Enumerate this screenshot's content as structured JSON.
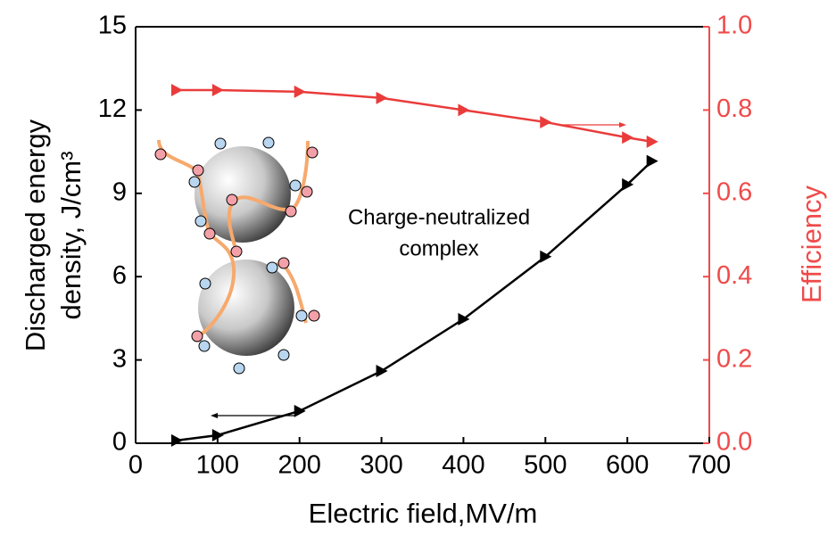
{
  "chart_data": {
    "type": "line",
    "xlabel": "Electric field,MV/m",
    "ylabel": [
      "Discharged energy",
      "density,  J/cm³"
    ],
    "y2label": "Efficiency",
    "annotation": [
      "Charge-neutralized",
      "complex"
    ],
    "x": [
      50,
      100,
      200,
      300,
      400,
      500,
      600,
      630
    ],
    "xlim": [
      0,
      700
    ],
    "xticks": [
      0,
      100,
      200,
      300,
      400,
      500,
      600,
      700
    ],
    "ylim": [
      0,
      15
    ],
    "yticks": [
      0,
      3,
      6,
      9,
      12,
      15
    ],
    "y2lim": [
      0,
      1
    ],
    "y2ticks": [
      {
        "value": 0,
        "label": "0.0"
      },
      0.2,
      0.4,
      0.6,
      0.8,
      {
        "value": 1,
        "label": "1.0"
      }
    ],
    "y2color": "#f04a4a",
    "series": [
      {
        "color": "#000000",
        "values": [
          0.1,
          0.29,
          1.16,
          2.6,
          4.47,
          6.72,
          9.32,
          10.16
        ]
      },
      {
        "color": "#ea3b3b",
        "axis": "y2",
        "values": [
          0.848,
          0.848,
          0.844,
          0.829,
          0.8,
          0.771,
          0.734,
          0.724
        ]
      }
    ]
  }
}
